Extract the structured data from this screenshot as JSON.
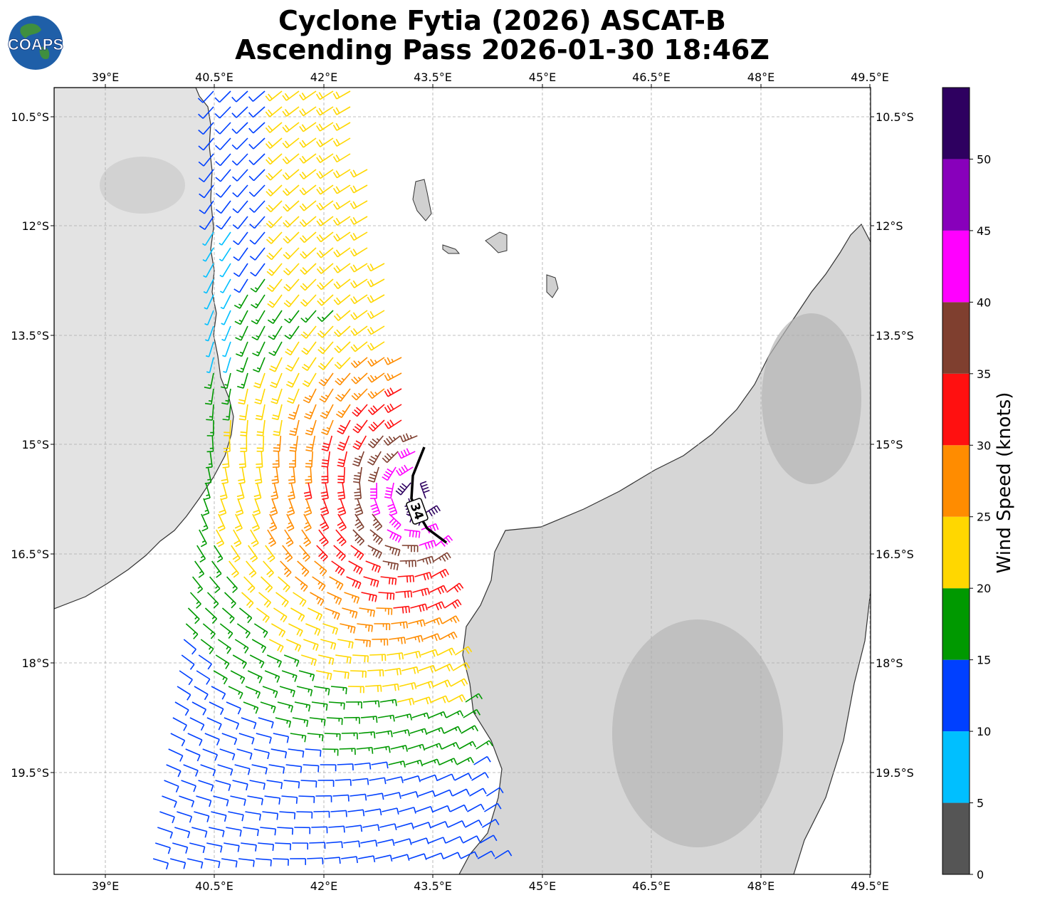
{
  "title": {
    "line1": "Cyclone Fytia (2026) ASCAT-B",
    "line2": "Ascending Pass 2026-01-30 18:46Z"
  },
  "logo": {
    "text": "COAPS",
    "icon": "globe-logo-icon"
  },
  "map": {
    "lon_ticks": [
      "39°E",
      "40.5°E",
      "42°E",
      "43.5°E",
      "45°E",
      "46.5°E",
      "48°E",
      "49.5°E"
    ],
    "lat_ticks": [
      "10.5°S",
      "12°S",
      "13.5°S",
      "15°S",
      "16.5°S",
      "18°S",
      "19.5°S"
    ],
    "storm_marker_label": "34",
    "ocean_color": "#ffffff",
    "land_color": "#e6e6e6"
  },
  "colorbar": {
    "label": "Wind Speed (knots)",
    "ticks": [
      "0",
      "5",
      "10",
      "15",
      "20",
      "25",
      "30",
      "35",
      "40",
      "45",
      "50"
    ],
    "bins": [
      {
        "min": 0,
        "max": 5,
        "color": "#555555"
      },
      {
        "min": 5,
        "max": 10,
        "color": "#00bfff"
      },
      {
        "min": 10,
        "max": 15,
        "color": "#0040ff"
      },
      {
        "min": 15,
        "max": 20,
        "color": "#009900"
      },
      {
        "min": 20,
        "max": 25,
        "color": "#ffd700"
      },
      {
        "min": 25,
        "max": 30,
        "color": "#ff8c00"
      },
      {
        "min": 30,
        "max": 35,
        "color": "#ff1010"
      },
      {
        "min": 35,
        "max": 40,
        "color": "#7f3f2f"
      },
      {
        "min": 40,
        "max": 45,
        "color": "#ff00ff"
      },
      {
        "min": 45,
        "max": 50,
        "color": "#8800bb"
      },
      {
        "min": 50,
        "max": 55,
        "color": "#2e0060"
      }
    ]
  }
}
